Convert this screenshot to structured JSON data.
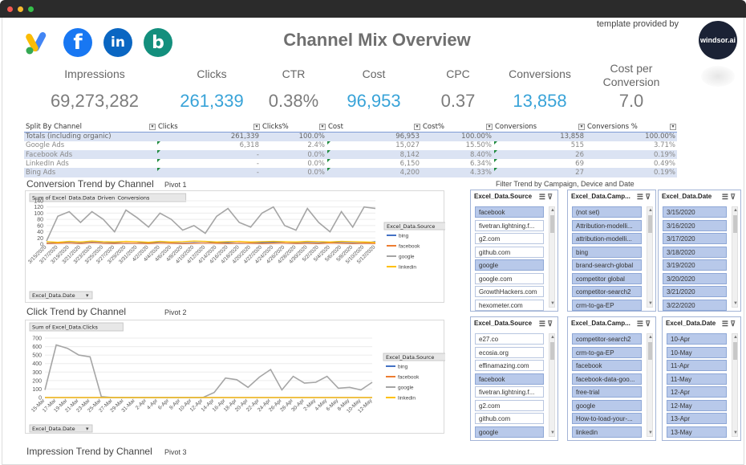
{
  "window": {
    "dots": [
      "#f35a52",
      "#f7b92e",
      "#35c14a"
    ]
  },
  "logos": [
    {
      "name": "google-ads-logo",
      "glyph": "▲",
      "bg": "#ffffff",
      "fg": "#fbbc04"
    },
    {
      "name": "facebook-logo",
      "glyph": "f",
      "bg": "#1877f2",
      "fg": "#ffffff"
    },
    {
      "name": "linkedin-logo",
      "glyph": "in",
      "bg": "#0a66c2",
      "fg": "#ffffff"
    },
    {
      "name": "bing-logo",
      "glyph": "b",
      "bg": "#138f7d",
      "fg": "#ffffff"
    }
  ],
  "header": {
    "title": "Channel Mix Overview",
    "template_text": "template provided by",
    "brand": "windsor.ai"
  },
  "kpis": [
    {
      "label": "Impressions",
      "value": "69,273,282",
      "accent": false
    },
    {
      "label": "Clicks",
      "value": "261,339",
      "accent": true
    },
    {
      "label": "CTR",
      "value": "0.38%",
      "accent": false
    },
    {
      "label": "Cost",
      "value": "96,953",
      "accent": true
    },
    {
      "label": "CPC",
      "value": "0.37",
      "accent": false
    },
    {
      "label": "Conversions",
      "value": "13,858",
      "accent": true
    },
    {
      "label": "Cost per Conversion",
      "value": "7.0",
      "accent": false
    }
  ],
  "split_table": {
    "headers": [
      "Split By Channel",
      "Clicks",
      "Clicks%",
      "Cost",
      "Cost%",
      "Conversions",
      "Conversions %"
    ],
    "rows": [
      [
        "Totals (including organic)",
        "261,339",
        "100.0%",
        "96,953",
        "100.00%",
        "13,858",
        "100.00%"
      ],
      [
        "Google Ads",
        "6,318",
        "2.4%",
        "15,027",
        "15.50%",
        "515",
        "3.71%"
      ],
      [
        "Facebook Ads",
        "-",
        "0.0%",
        "8,142",
        "8.40%",
        "26",
        "0.19%"
      ],
      [
        "LinkedIn Ads",
        "-",
        "0.0%",
        "6,150",
        "6.34%",
        "69",
        "0.49%"
      ],
      [
        "Bing Ads",
        "-",
        "0.0%",
        "4,200",
        "4.33%",
        "27",
        "0.19%"
      ]
    ]
  },
  "sections": {
    "conversion_title": "Conversion Trend by Channel",
    "conversion_pivot": "Pivot 1",
    "click_title": "Click Trend by Channel",
    "click_pivot": "Pivot 2",
    "impression_title": "Impression Trend by Channel",
    "impression_pivot": "Pivot 3",
    "filter_caption": "Filter Trend by Campaign, Device and Date"
  },
  "chart_data": [
    {
      "type": "line",
      "title": "Sum of Excel_Data.Data_Driven_Conversions",
      "legend_title": "Excel_Data.Source",
      "axis_field": "Excel_Data.Date",
      "ylim": [
        0,
        140
      ],
      "yticks": [
        0,
        20,
        40,
        60,
        80,
        100,
        120,
        140
      ],
      "x": [
        "3/15/2020",
        "3/17/2020",
        "3/19/2020",
        "3/21/2020",
        "3/23/2020",
        "3/25/2020",
        "3/27/2020",
        "3/29/2020",
        "3/31/2020",
        "4/2/2020",
        "4/4/2020",
        "4/6/2020",
        "4/8/2020",
        "4/10/2020",
        "4/12/2020",
        "4/14/2020",
        "4/16/2020",
        "4/18/2020",
        "4/20/2020",
        "4/22/2020",
        "4/24/2020",
        "4/26/2020",
        "4/28/2020",
        "4/30/2020",
        "5/2/2020",
        "5/4/2020",
        "5/6/2020",
        "5/8/2020",
        "5/10/2020",
        "5/12/2020"
      ],
      "series": [
        {
          "name": "bing",
          "color": "#4472c4",
          "values": [
            3,
            4,
            5,
            3,
            6,
            4,
            5,
            3,
            4,
            6,
            5,
            4,
            3,
            5,
            4,
            6,
            5,
            3,
            4,
            5,
            6,
            4,
            3,
            5,
            4,
            6,
            5,
            4,
            3,
            8
          ]
        },
        {
          "name": "facebook",
          "color": "#ed7d31",
          "values": [
            2,
            3,
            4,
            2,
            5,
            3,
            2,
            4,
            3,
            2,
            4,
            3,
            2,
            3,
            4,
            3,
            2,
            4,
            3,
            2,
            3,
            4,
            2,
            3,
            2,
            4,
            3,
            2,
            3,
            2
          ]
        },
        {
          "name": "google",
          "color": "#a5a5a5",
          "values": [
            10,
            90,
            105,
            70,
            105,
            80,
            40,
            110,
            85,
            55,
            100,
            80,
            45,
            60,
            35,
            90,
            115,
            70,
            55,
            100,
            120,
            60,
            45,
            115,
            70,
            40,
            105,
            55,
            120,
            115
          ]
        },
        {
          "name": "linkedin",
          "color": "#ffc000",
          "values": [
            8,
            6,
            9,
            7,
            10,
            8,
            7,
            9,
            8,
            6,
            9,
            7,
            8,
            10,
            9,
            7,
            8,
            9,
            7,
            8,
            9,
            8,
            7,
            9,
            8,
            7,
            9,
            8,
            7,
            6
          ]
        }
      ]
    },
    {
      "type": "line",
      "title": "Sum of Excel_Data.Clicks",
      "legend_title": "Excel_Data.Source",
      "axis_field": "Excel_Data.Date",
      "ylim": [
        0,
        700
      ],
      "yticks": [
        0,
        100,
        200,
        300,
        400,
        500,
        600,
        700
      ],
      "x": [
        "15-Mar",
        "17-Mar",
        "19-Mar",
        "21-Mar",
        "23-Mar",
        "25-Mar",
        "27-Mar",
        "29-Mar",
        "31-Mar",
        "2-Apr",
        "4-Apr",
        "6-Apr",
        "8-Apr",
        "10-Apr",
        "12-Apr",
        "14-Apr",
        "16-Apr",
        "18-Apr",
        "20-Apr",
        "22-Apr",
        "24-Apr",
        "26-Apr",
        "28-Apr",
        "30-Apr",
        "2-May",
        "4-May",
        "6-May",
        "8-May",
        "10-May",
        "12-May"
      ],
      "series": [
        {
          "name": "bing",
          "color": "#4472c4",
          "values": [
            0,
            0,
            0,
            0,
            0,
            0,
            0,
            0,
            0,
            0,
            0,
            0,
            0,
            0,
            0,
            0,
            0,
            0,
            0,
            0,
            0,
            0,
            0,
            0,
            0,
            0,
            0,
            0,
            0,
            0
          ]
        },
        {
          "name": "facebook",
          "color": "#ed7d31",
          "values": [
            0,
            0,
            0,
            0,
            0,
            0,
            0,
            0,
            0,
            0,
            0,
            0,
            0,
            0,
            0,
            0,
            0,
            0,
            0,
            0,
            0,
            0,
            0,
            0,
            0,
            0,
            0,
            0,
            0,
            0
          ]
        },
        {
          "name": "google",
          "color": "#a5a5a5",
          "values": [
            90,
            620,
            580,
            500,
            480,
            10,
            0,
            0,
            0,
            0,
            0,
            0,
            0,
            0,
            0,
            60,
            230,
            210,
            120,
            240,
            330,
            90,
            250,
            170,
            180,
            250,
            110,
            120,
            90,
            180
          ]
        },
        {
          "name": "linkedin",
          "color": "#ffc000",
          "values": [
            0,
            0,
            0,
            0,
            0,
            0,
            0,
            0,
            0,
            0,
            0,
            0,
            0,
            0,
            0,
            0,
            0,
            0,
            0,
            0,
            0,
            0,
            0,
            0,
            0,
            0,
            0,
            0,
            0,
            0
          ]
        }
      ]
    }
  ],
  "slicers": [
    {
      "title": "Excel_Data.Source",
      "items": [
        {
          "label": "facebook",
          "selected": true
        },
        {
          "label": "fivetran.lightning.f...",
          "selected": false
        },
        {
          "label": "g2.com",
          "selected": false
        },
        {
          "label": "github.com",
          "selected": false
        },
        {
          "label": "google",
          "selected": true
        },
        {
          "label": "google.com",
          "selected": false
        },
        {
          "label": "GrowthHackers.com",
          "selected": false
        },
        {
          "label": "hexometer.com",
          "selected": false
        }
      ]
    },
    {
      "title": "Excel_Data.Camp...",
      "items": [
        {
          "label": "(not set)",
          "selected": true
        },
        {
          "label": "Attribution-modelli...",
          "selected": true
        },
        {
          "label": "attribution-modelli...",
          "selected": true
        },
        {
          "label": "bing",
          "selected": true
        },
        {
          "label": "brand-search-global",
          "selected": true
        },
        {
          "label": "competitor global",
          "selected": true
        },
        {
          "label": "competitor-search2",
          "selected": true
        },
        {
          "label": "crm-to-ga-EP",
          "selected": true
        }
      ]
    },
    {
      "title": "Excel_Data.Date",
      "items": [
        {
          "label": "3/15/2020",
          "selected": true
        },
        {
          "label": "3/16/2020",
          "selected": true
        },
        {
          "label": "3/17/2020",
          "selected": true
        },
        {
          "label": "3/18/2020",
          "selected": true
        },
        {
          "label": "3/19/2020",
          "selected": true
        },
        {
          "label": "3/20/2020",
          "selected": true
        },
        {
          "label": "3/21/2020",
          "selected": true
        },
        {
          "label": "3/22/2020",
          "selected": true
        }
      ]
    },
    {
      "title": "Excel_Data.Source",
      "items": [
        {
          "label": "e27.co",
          "selected": false
        },
        {
          "label": "ecosia.org",
          "selected": false
        },
        {
          "label": "effinamazing.com",
          "selected": false
        },
        {
          "label": "facebook",
          "selected": true
        },
        {
          "label": "fivetran.lightning.f...",
          "selected": false
        },
        {
          "label": "g2.com",
          "selected": false
        },
        {
          "label": "github.com",
          "selected": false
        },
        {
          "label": "google",
          "selected": true
        }
      ]
    },
    {
      "title": "Excel_Data.Camp...",
      "items": [
        {
          "label": "competitor-search2",
          "selected": true
        },
        {
          "label": "crm-to-ga-EP",
          "selected": true
        },
        {
          "label": "facebook",
          "selected": true
        },
        {
          "label": "facebook-data-goo...",
          "selected": true
        },
        {
          "label": "free-trial",
          "selected": true
        },
        {
          "label": "google",
          "selected": true
        },
        {
          "label": "How-to-load-your-...",
          "selected": true
        },
        {
          "label": "linkedin",
          "selected": true
        }
      ]
    },
    {
      "title": "Excel_Data.Date",
      "items": [
        {
          "label": "10-Apr",
          "selected": true
        },
        {
          "label": "10-May",
          "selected": true
        },
        {
          "label": "11-Apr",
          "selected": true
        },
        {
          "label": "11-May",
          "selected": true
        },
        {
          "label": "12-Apr",
          "selected": true
        },
        {
          "label": "12-May",
          "selected": true
        },
        {
          "label": "13-Apr",
          "selected": true
        },
        {
          "label": "13-May",
          "selected": true
        }
      ]
    }
  ],
  "icons": {
    "multiselect": "☰",
    "clear_filter": "⊽",
    "dropdown": "▾"
  }
}
